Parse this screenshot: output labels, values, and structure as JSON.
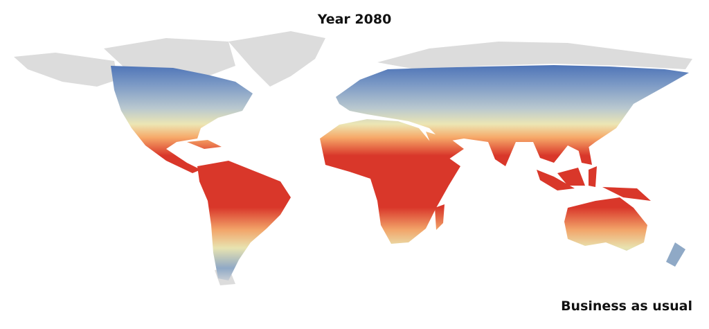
{
  "title": "Year 2080",
  "scenario": "Business as usual"
}
